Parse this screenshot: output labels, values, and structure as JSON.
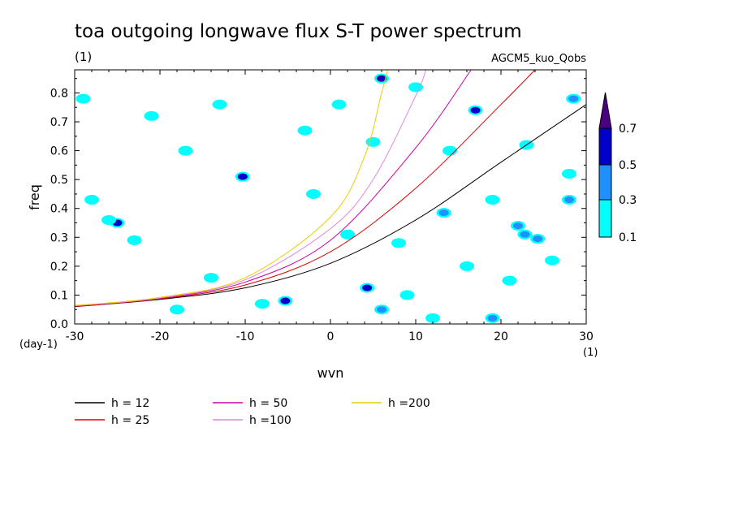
{
  "chart_data": {
    "type": "heatmap",
    "title": "toa outgoing longwave flux S-T power spectrum",
    "subtitle_left": "(1)",
    "subtitle_right": "AGCM5_kuo_Qobs",
    "xlabel": "wvn",
    "ylabel": "freq",
    "x_unit": "(1)",
    "y_unit": "(day-1)",
    "xlim": [
      -30,
      30
    ],
    "ylim": [
      0,
      0.88
    ],
    "x_ticks": [
      -30,
      -20,
      -10,
      0,
      10,
      20,
      30
    ],
    "x_tick_labels": [
      "-30",
      "-20",
      "-10",
      "0",
      "10",
      "20",
      "30"
    ],
    "y_ticks": [
      0,
      0.1,
      0.2,
      0.3,
      0.4,
      0.5,
      0.6,
      0.7,
      0.8
    ],
    "y_tick_labels": [
      "0.0",
      "0.1",
      "0.2",
      "0.3",
      "0.4",
      "0.5",
      "0.6",
      "0.7",
      "0.8"
    ],
    "color_levels": {
      "values": [
        "0.1",
        "0.3",
        "0.5",
        "0.7"
      ],
      "colors": [
        "#00ffff",
        "#1e90ff",
        "#0000cd",
        "#4b0082"
      ]
    },
    "curves": [
      {
        "name": "h = 12",
        "h": 12,
        "color": "#000000",
        "points": [
          [
            -30,
            0.06
          ],
          [
            -20,
            0.085
          ],
          [
            -10,
            0.125
          ],
          [
            0,
            0.21
          ],
          [
            10,
            0.36
          ],
          [
            20,
            0.56
          ],
          [
            30,
            0.76
          ]
        ]
      },
      {
        "name": "h = 25",
        "h": 25,
        "color": "#dd0000",
        "points": [
          [
            -30,
            0.06
          ],
          [
            -20,
            0.087
          ],
          [
            -10,
            0.135
          ],
          [
            0,
            0.25
          ],
          [
            10,
            0.47
          ],
          [
            20,
            0.76
          ],
          [
            24,
            0.88
          ]
        ]
      },
      {
        "name": "h = 50",
        "h": 50,
        "color": "#cc00aa",
        "points": [
          [
            -30,
            0.062
          ],
          [
            -20,
            0.089
          ],
          [
            -10,
            0.145
          ],
          [
            0,
            0.29
          ],
          [
            10,
            0.61
          ],
          [
            16.5,
            0.88
          ]
        ]
      },
      {
        "name": "h =100",
        "h": 100,
        "color": "#dd88dd",
        "points": [
          [
            -30,
            0.063
          ],
          [
            -20,
            0.09
          ],
          [
            -10,
            0.153
          ],
          [
            0,
            0.33
          ],
          [
            5,
            0.5
          ],
          [
            10,
            0.79
          ],
          [
            11.2,
            0.88
          ]
        ]
      },
      {
        "name": "h =200",
        "h": 200,
        "color": "#eecc00",
        "points": [
          [
            -30,
            0.064
          ],
          [
            -20,
            0.092
          ],
          [
            -10,
            0.16
          ],
          [
            0,
            0.37
          ],
          [
            4,
            0.58
          ],
          [
            6,
            0.8
          ],
          [
            6.7,
            0.88
          ]
        ]
      }
    ],
    "patches": [
      {
        "x": 6,
        "y": 0.85,
        "level": 0.7
      },
      {
        "x": -25,
        "y": 0.35,
        "level": 0.5
      },
      {
        "x": -5.3,
        "y": 0.08,
        "level": 0.5
      },
      {
        "x": 4.3,
        "y": 0.125,
        "level": 0.5
      },
      {
        "x": -10.3,
        "y": 0.51,
        "level": 0.5
      },
      {
        "x": 17,
        "y": 0.74,
        "level": 0.5
      },
      {
        "x": 19,
        "y": 0.02,
        "level": 0.3
      },
      {
        "x": 6,
        "y": 0.05,
        "level": 0.3
      },
      {
        "x": 22,
        "y": 0.34,
        "level": 0.3
      },
      {
        "x": 28,
        "y": 0.43,
        "level": 0.3
      },
      {
        "x": 28.5,
        "y": 0.78,
        "level": 0.3
      },
      {
        "x": 22.8,
        "y": 0.31,
        "level": 0.3
      },
      {
        "x": 13.3,
        "y": 0.385,
        "level": 0.3
      },
      {
        "x": 24.3,
        "y": 0.295,
        "level": 0.3
      },
      {
        "x": -28,
        "y": 0.43,
        "level": 0.1
      },
      {
        "x": -29,
        "y": 0.78,
        "level": 0.1
      },
      {
        "x": -26,
        "y": 0.36,
        "level": 0.1
      },
      {
        "x": -23,
        "y": 0.29,
        "level": 0.1
      },
      {
        "x": -21,
        "y": 0.72,
        "level": 0.1
      },
      {
        "x": -14,
        "y": 0.16,
        "level": 0.1
      },
      {
        "x": -13,
        "y": 0.76,
        "level": 0.1
      },
      {
        "x": -8,
        "y": 0.07,
        "level": 0.1
      },
      {
        "x": -3,
        "y": 0.67,
        "level": 0.1
      },
      {
        "x": 1,
        "y": 0.76,
        "level": 0.1
      },
      {
        "x": 2,
        "y": 0.31,
        "level": 0.1
      },
      {
        "x": 5,
        "y": 0.63,
        "level": 0.1
      },
      {
        "x": 8,
        "y": 0.28,
        "level": 0.1
      },
      {
        "x": 10,
        "y": 0.82,
        "level": 0.1
      },
      {
        "x": 14,
        "y": 0.6,
        "level": 0.1
      },
      {
        "x": 16,
        "y": 0.2,
        "level": 0.1
      },
      {
        "x": 19,
        "y": 0.43,
        "level": 0.1
      },
      {
        "x": 21,
        "y": 0.15,
        "level": 0.1
      },
      {
        "x": 23,
        "y": 0.62,
        "level": 0.1
      },
      {
        "x": 26,
        "y": 0.22,
        "level": 0.1
      },
      {
        "x": 28,
        "y": 0.52,
        "level": 0.1
      },
      {
        "x": 12,
        "y": 0.02,
        "level": 0.1
      },
      {
        "x": -18,
        "y": 0.05,
        "level": 0.1
      },
      {
        "x": -2,
        "y": 0.45,
        "level": 0.1
      },
      {
        "x": -17,
        "y": 0.6,
        "level": 0.1
      },
      {
        "x": 9,
        "y": 0.1,
        "level": 0.1
      }
    ]
  }
}
